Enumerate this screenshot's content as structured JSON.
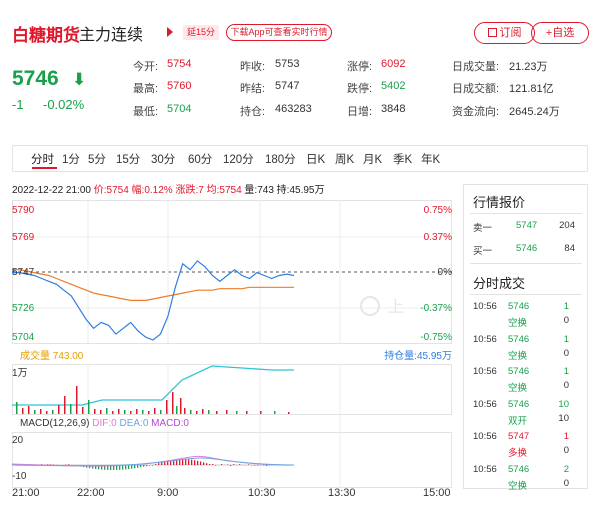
{
  "header": {
    "name": "白糖期货",
    "subtitle": "主力连续",
    "delay": "延15分",
    "app_btn": "下载App可查看实时行情",
    "subscribe": "订阅",
    "add": "+自选"
  },
  "price": {
    "last": "5746",
    "change": "-1",
    "change_pct": "-0.02%"
  },
  "quotes": [
    {
      "label": "今开:",
      "value": "5754",
      "color": "red"
    },
    {
      "label": "昨收:",
      "value": "5753",
      "color": "dark"
    },
    {
      "label": "涨停:",
      "value": "6092",
      "color": "red"
    },
    {
      "label": "日成交量:",
      "value": "21.23万",
      "color": "dark"
    },
    {
      "label": "最高:",
      "value": "5760",
      "color": "red"
    },
    {
      "label": "昨结:",
      "value": "5747",
      "color": "dark"
    },
    {
      "label": "跌停:",
      "value": "5402",
      "color": "green"
    },
    {
      "label": "日成交额:",
      "value": "121.81亿",
      "color": "dark"
    },
    {
      "label": "最低:",
      "value": "5704",
      "color": "green"
    },
    {
      "label": "持仓:",
      "value": "463283",
      "color": "dark"
    },
    {
      "label": "日增:",
      "value": "3848",
      "color": "dark"
    },
    {
      "label": "资金流向:",
      "value": "2645.24万",
      "color": "dark"
    }
  ],
  "tabs": [
    "分时",
    "1分",
    "5分",
    "15分",
    "30分",
    "60分",
    "120分",
    "180分",
    "日K",
    "周K",
    "月K",
    "季K",
    "年K"
  ],
  "info": {
    "date": "2022-12-22 21:00",
    "price": "价:5754",
    "range": "幅:0.12%",
    "rise": "涨跌:7",
    "avg": "均:5754",
    "vol": "量:743",
    "hold": "持:45.95万"
  },
  "chart": {
    "y_labels_left": [
      "5790",
      "5769",
      "5747",
      "5726",
      "5704"
    ],
    "y_labels_right": [
      "0.75%",
      "0.37%",
      "0%",
      "-0.37%",
      "-0.75%"
    ],
    "vol_label": "成交量",
    "vol_value": "743.00",
    "hold_label": "持仓量:",
    "hold_value": "45.95万",
    "vol_axis": "1万",
    "macd_title": "MACD(12,26,9)",
    "dif": "DIF:0",
    "dea": "DEA:0",
    "macd": "MACD:0",
    "macd_axis_top": "20",
    "macd_axis_bottom": "-10",
    "x_labels": [
      "21:00",
      "22:00",
      "9:00",
      "10:30",
      "13:30",
      "15:00"
    ],
    "watermark": "上"
  },
  "chart_data": {
    "type": "line",
    "x_labels": [
      "21:00",
      "22:00",
      "9:00",
      "10:30",
      "13:30",
      "15:00"
    ],
    "y_range": [
      5704,
      5790
    ],
    "series": [
      {
        "values": [
          5750,
          5750,
          5749,
          5748,
          5746,
          5744,
          5742,
          5738,
          5734,
          5726,
          5718,
          5712,
          5716,
          5714,
          5708,
          5712,
          5716,
          5710,
          5706,
          5704,
          5708,
          5720,
          5740,
          5756,
          5752,
          5758,
          5754,
          5748,
          5744,
          5748,
          5752,
          5748,
          5746,
          5750,
          5748,
          5746,
          5748,
          5749,
          5748
        ]
      },
      {
        "values": [
          5752,
          5752,
          5751,
          5750,
          5749,
          5748,
          5746,
          5744,
          5742,
          5740,
          5738,
          5736,
          5735,
          5734,
          5733,
          5732,
          5731,
          5731,
          5731,
          5732,
          5733,
          5734,
          5735,
          5736,
          5737,
          5738,
          5738,
          5738,
          5739,
          5739,
          5739,
          5739,
          5740,
          5740,
          5740,
          5740,
          5740,
          5740,
          5740
        ]
      }
    ]
  },
  "panel": {
    "quote_title": "行情报价",
    "sell_label": "卖一",
    "sell_price": "5747",
    "sell_vol": "204",
    "buy_label": "买一",
    "buy_price": "5746",
    "buy_vol": "84",
    "trades_title": "分时成交",
    "trades": [
      {
        "time": "10:56",
        "price": "5746",
        "vol": "1",
        "type": "空换",
        "chg": "0",
        "color": "green",
        "tcolor": "green"
      },
      {
        "time": "10:56",
        "price": "5746",
        "vol": "1",
        "type": "空换",
        "chg": "0",
        "color": "green",
        "tcolor": "green"
      },
      {
        "time": "10:56",
        "price": "5746",
        "vol": "1",
        "type": "空换",
        "chg": "0",
        "color": "green",
        "tcolor": "green"
      },
      {
        "time": "10:56",
        "price": "5746",
        "vol": "10",
        "type": "双开",
        "chg": "10",
        "color": "green",
        "tcolor": "green"
      },
      {
        "time": "10:56",
        "price": "5747",
        "vol": "1",
        "type": "多换",
        "chg": "0",
        "color": "red",
        "tcolor": "red"
      },
      {
        "time": "10:56",
        "price": "5746",
        "vol": "2",
        "type": "空换",
        "chg": "0",
        "color": "green",
        "tcolor": "green"
      }
    ]
  },
  "colors": {
    "red": "#e0182c",
    "green": "#18a14b",
    "price_line": "#2e7fe0",
    "avg_line": "#f07a28"
  }
}
